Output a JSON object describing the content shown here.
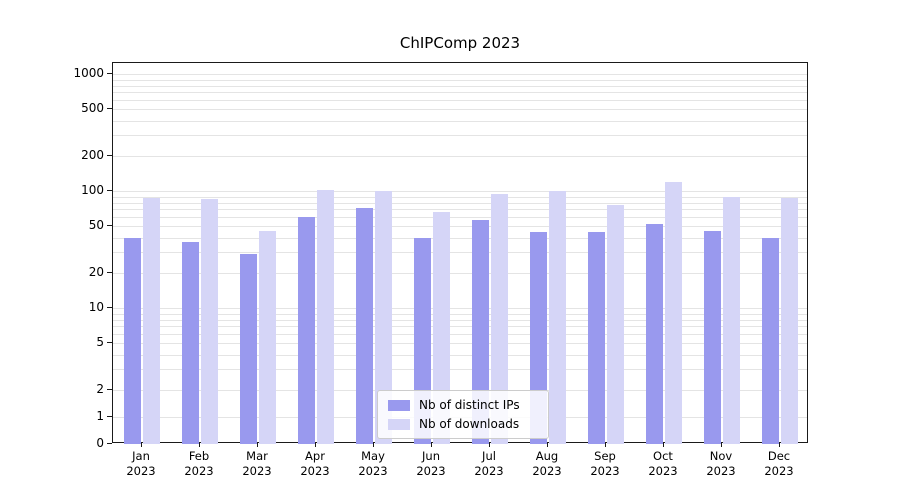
{
  "chart_data": {
    "type": "bar",
    "title": "ChIPComp 2023",
    "xlabel": "",
    "ylabel": "",
    "year": "2023",
    "categories": [
      "Jan",
      "Feb",
      "Mar",
      "Apr",
      "May",
      "Jun",
      "Jul",
      "Aug",
      "Sep",
      "Oct",
      "Nov",
      "Dec"
    ],
    "series": [
      {
        "name": "Nb of distinct IPs",
        "color": "#9999ee",
        "values": [
          40,
          37,
          29,
          60,
          72,
          40,
          57,
          45,
          45,
          53,
          46,
          40
        ]
      },
      {
        "name": "Nb of downloads",
        "color": "#d5d5f7",
        "values": [
          88,
          86,
          46,
          102,
          101,
          66,
          95,
          100,
          76,
          120,
          90,
          87
        ]
      }
    ],
    "y_ticks": [
      0,
      1,
      2,
      5,
      10,
      20,
      50,
      100,
      200,
      500,
      1000
    ],
    "scale": "symlog",
    "ylim": [
      0,
      1100
    ],
    "grid": true,
    "legend_position": "bottom-center"
  }
}
